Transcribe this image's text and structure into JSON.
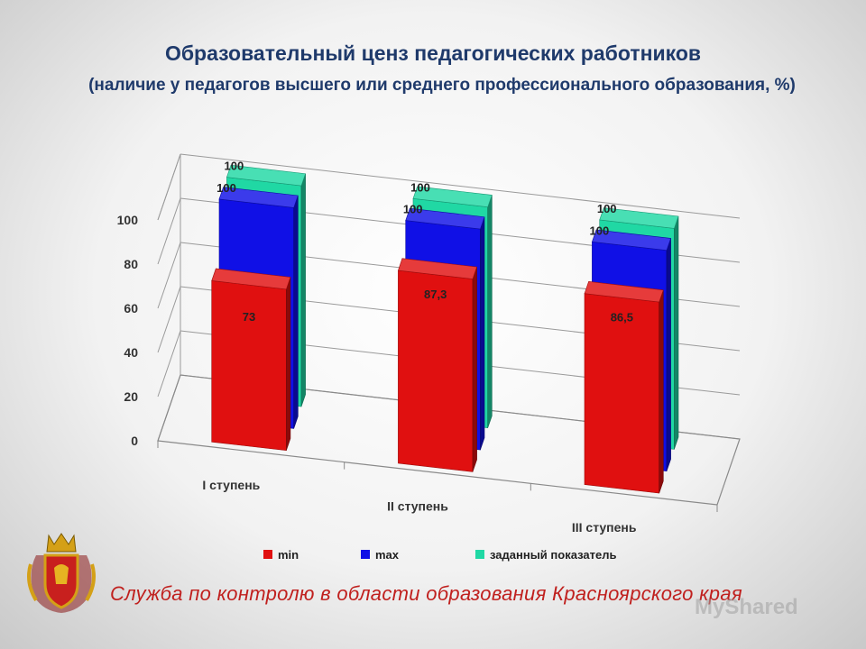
{
  "chart_data": {
    "type": "bar",
    "title": "Образовательный ценз педагогических работников",
    "subtitle": "(наличие у педагогов  высшего или среднего профессионального образования, %)",
    "categories": [
      "I ступень",
      "II ступень",
      "III ступень"
    ],
    "series": [
      {
        "name": "min",
        "color": "#e01010",
        "values": [
          73,
          87.3,
          86.5
        ],
        "labels": [
          "73",
          "87,3",
          "86,5"
        ]
      },
      {
        "name": "max",
        "color": "#1010e6",
        "values": [
          100,
          100,
          100
        ],
        "labels": [
          "100",
          "100",
          "100"
        ]
      },
      {
        "name": "заданный показатель",
        "color": "#20d8a4",
        "values": [
          100,
          100,
          100
        ],
        "labels": [
          "100",
          "100",
          "100"
        ]
      }
    ],
    "yticks": [
      "0",
      "20",
      "40",
      "60",
      "80",
      "100"
    ],
    "ylim": [
      0,
      100
    ],
    "grid": true,
    "legend": "bottom"
  },
  "footer": "Служба по контролю в области образования Красноярского края",
  "watermark": "MyShared",
  "emblem": "krasnoyarsk-coat-of-arms"
}
